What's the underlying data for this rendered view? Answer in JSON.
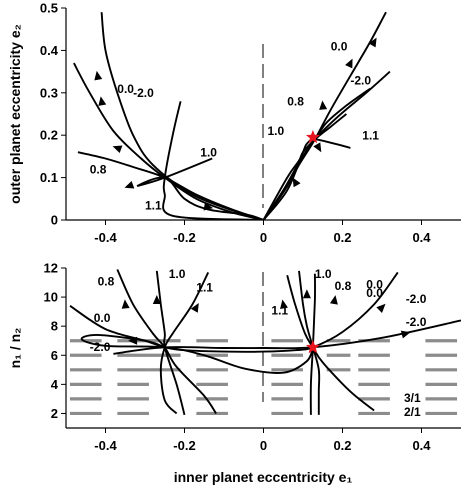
{
  "chart_data": [
    {
      "type": "line",
      "panel": "top",
      "xlim": [
        -0.5,
        0.5
      ],
      "ylim": [
        0,
        0.5
      ],
      "yticks": [
        "0",
        "0.1",
        "0.2",
        "0.3",
        "0.4",
        "0.5"
      ],
      "ylabel": "outer planet eccentricity e₂",
      "series": [
        {
          "label": "0.0",
          "points": [
            [
              -0.48,
              0.37
            ],
            [
              -0.44,
              0.3
            ],
            [
              -0.38,
              0.21
            ],
            [
              -0.31,
              0.145
            ],
            [
              -0.25,
              0.1
            ],
            [
              -0.17,
              0.05
            ],
            [
              -0.08,
              0.018
            ],
            [
              0.0,
              0.0
            ],
            [
              0.05,
              0.065
            ],
            [
              0.09,
              0.13
            ],
            [
              0.13,
              0.19
            ],
            [
              0.17,
              0.26
            ],
            [
              0.22,
              0.34
            ],
            [
              0.27,
              0.42
            ],
            [
              0.31,
              0.49
            ]
          ]
        },
        {
          "label": "-2.0",
          "points": [
            [
              -0.41,
              0.49
            ],
            [
              -0.4,
              0.4
            ],
            [
              -0.37,
              0.3
            ],
            [
              -0.33,
              0.2
            ],
            [
              -0.28,
              0.13
            ],
            [
              -0.18,
              0.06
            ],
            [
              -0.07,
              0.02
            ],
            [
              0.0,
              0.0
            ],
            [
              0.05,
              0.07
            ],
            [
              0.09,
              0.135
            ],
            [
              0.13,
              0.19
            ],
            [
              0.19,
              0.245
            ],
            [
              0.26,
              0.3
            ],
            [
              0.32,
              0.35
            ]
          ]
        },
        {
          "label": "0.8",
          "points": [
            [
              -0.47,
              0.16
            ],
            [
              -0.4,
              0.145
            ],
            [
              -0.33,
              0.125
            ],
            [
              -0.25,
              0.1
            ],
            [
              -0.17,
              0.06
            ],
            [
              -0.08,
              0.025
            ],
            [
              0.0,
              0.0
            ],
            [
              0.06,
              0.08
            ],
            [
              0.1,
              0.15
            ],
            [
              0.13,
              0.19
            ],
            [
              0.16,
              0.23
            ],
            [
              0.21,
              0.27
            ],
            [
              0.27,
              0.31
            ]
          ]
        },
        {
          "label": "1.0",
          "points": [
            [
              -0.21,
              0.28
            ],
            [
              -0.23,
              0.2
            ],
            [
              -0.25,
              0.1
            ],
            [
              -0.25,
              0.06
            ],
            [
              -0.23,
              0.01
            ],
            [
              0.0,
              0.0
            ],
            [
              0.06,
              0.07
            ],
            [
              0.1,
              0.16
            ],
            [
              0.11,
              0.18
            ],
            [
              0.13,
              0.19
            ],
            [
              0.18,
              0.18
            ],
            [
              0.22,
              0.17
            ]
          ]
        },
        {
          "label": "1.1",
          "points": [
            [
              -0.13,
              0.145
            ],
            [
              -0.25,
              0.1
            ],
            [
              -0.32,
              0.08
            ],
            [
              -0.25,
              0.1
            ],
            [
              -0.2,
              0.05
            ],
            [
              -0.14,
              0.025
            ],
            [
              -0.04,
              0.012
            ],
            [
              0.0,
              0.0
            ],
            [
              0.06,
              0.1
            ],
            [
              0.09,
              0.14
            ],
            [
              0.1,
              0.16
            ],
            [
              0.13,
              0.19
            ],
            [
              0.17,
              0.22
            ],
            [
              0.21,
              0.25
            ]
          ]
        }
      ],
      "fixed_point": [
        0.125,
        0.195
      ]
    },
    {
      "type": "line",
      "panel": "bottom",
      "xlim": [
        -0.5,
        0.5
      ],
      "ylim": [
        1,
        12
      ],
      "xticks": [
        "-0.4",
        "-0.2",
        "0",
        "0.2",
        "0.4"
      ],
      "yticks": [
        "2",
        "4",
        "6",
        "8",
        "10",
        "12"
      ],
      "xlabel": "inner planet eccentricity e₁",
      "ylabel": "n₁ / n₂",
      "resonance_labels": [
        "3/1",
        "2/1"
      ],
      "series": [
        {
          "label": "-2.0",
          "points": [
            [
              -0.38,
              6.1
            ],
            [
              -0.25,
              6.55
            ],
            [
              -0.1,
              6.5
            ],
            [
              0.0,
              6.5
            ],
            [
              0.125,
              6.55
            ],
            [
              0.3,
              7.2
            ],
            [
              0.5,
              8.4
            ]
          ]
        },
        {
          "label": "0.0",
          "points": [
            [
              -0.49,
              9.4
            ],
            [
              -0.4,
              7.8
            ],
            [
              -0.3,
              7.0
            ],
            [
              -0.25,
              6.55
            ],
            [
              -0.2,
              6.35
            ],
            [
              -0.1,
              6.25
            ],
            [
              0.0,
              6.25
            ],
            [
              0.08,
              6.35
            ],
            [
              0.125,
              6.55
            ],
            [
              0.2,
              7.6
            ],
            [
              0.28,
              9.5
            ],
            [
              0.34,
              11.7
            ]
          ]
        },
        {
          "label": "0.8",
          "points": [
            [
              -0.37,
              11.9
            ],
            [
              -0.33,
              9.5
            ],
            [
              -0.28,
              7.5
            ],
            [
              -0.25,
              6.55
            ],
            [
              -0.22,
              5.2
            ],
            [
              -0.15,
              3.2
            ],
            [
              -0.12,
              2.0
            ],
            [
              0.06,
              11.5
            ],
            [
              0.08,
              9.5
            ],
            [
              0.105,
              7.5
            ],
            [
              0.125,
              6.55
            ],
            [
              0.15,
              5.5
            ],
            [
              0.22,
              3.5
            ],
            [
              0.28,
              2.2
            ]
          ]
        },
        {
          "label": "1.0",
          "points": [
            [
              -0.27,
              11.8
            ],
            [
              -0.26,
              9.5
            ],
            [
              -0.25,
              7.5
            ],
            [
              -0.25,
              6.55
            ],
            [
              -0.22,
              4.0
            ],
            [
              -0.2,
              1.9
            ],
            [
              0.09,
              11.8
            ],
            [
              0.1,
              9.5
            ],
            [
              0.11,
              8.0
            ],
            [
              0.125,
              6.55
            ],
            [
              0.14,
              5.0
            ],
            [
              0.14,
              3.5
            ],
            [
              0.14,
              1.9
            ]
          ]
        },
        {
          "label": "1.1",
          "points": [
            [
              -0.14,
              11.7
            ],
            [
              -0.18,
              9.5
            ],
            [
              -0.23,
              7.5
            ],
            [
              -0.25,
              6.55
            ],
            [
              -0.26,
              5.0
            ],
            [
              -0.25,
              2.9
            ],
            [
              -0.22,
              2.0
            ],
            [
              0.13,
              11.6
            ],
            [
              0.13,
              9.8
            ],
            [
              0.125,
              6.55
            ],
            [
              0.12,
              4.0
            ],
            [
              0.12,
              1.9
            ]
          ]
        },
        {
          "label": "",
          "points": [
            [
              -0.25,
              6.55
            ],
            [
              -0.3,
              7.0
            ],
            [
              -0.42,
              7.4
            ],
            [
              -0.46,
              7.1
            ],
            [
              -0.4,
              6.65
            ],
            [
              -0.25,
              6.55
            ],
            [
              -0.15,
              6.0
            ],
            [
              -0.05,
              5.1
            ],
            [
              0.05,
              4.8
            ],
            [
              0.11,
              5.6
            ],
            [
              0.125,
              6.55
            ]
          ]
        }
      ],
      "fixed_points": [
        [
          -0.25,
          6.55
        ],
        [
          0.125,
          6.55
        ]
      ]
    }
  ]
}
